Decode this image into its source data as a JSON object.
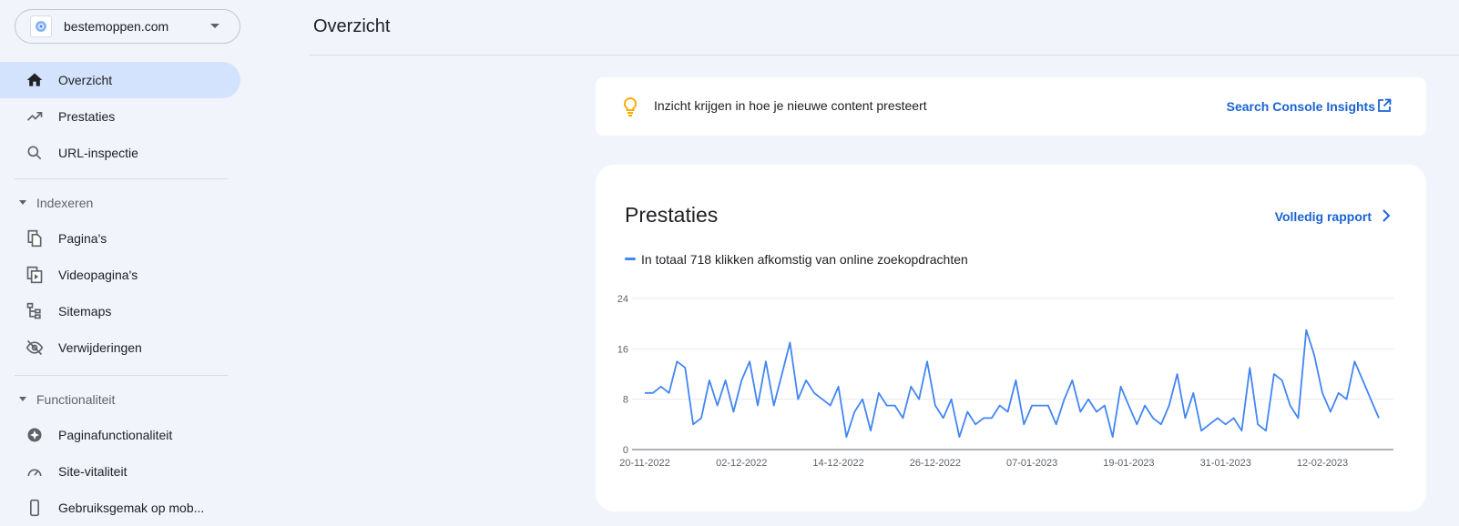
{
  "sidebar": {
    "property": "bestemoppen.com",
    "items_top": [
      {
        "label": "Overzicht",
        "icon": "home-icon",
        "active": true
      },
      {
        "label": "Prestaties",
        "icon": "trending-up-icon"
      },
      {
        "label": "URL-inspectie",
        "icon": "search-icon"
      }
    ],
    "section_index": "Indexeren",
    "items_index": [
      {
        "label": "Pagina's",
        "icon": "pages-icon"
      },
      {
        "label": "Videopagina's",
        "icon": "video-pages-icon"
      },
      {
        "label": "Sitemaps",
        "icon": "sitemap-icon"
      },
      {
        "label": "Verwijderingen",
        "icon": "eye-off-icon"
      }
    ],
    "section_func": "Functionaliteit",
    "items_func": [
      {
        "label": "Paginafunctionaliteit",
        "icon": "page-experience-icon"
      },
      {
        "label": "Site-vitaliteit",
        "icon": "speedometer-icon"
      },
      {
        "label": "Gebruiksgemak op mob...",
        "icon": "mobile-icon"
      }
    ]
  },
  "header": {
    "title": "Overzicht"
  },
  "insights": {
    "text": "Inzicht krijgen in hoe je nieuwe content presteert",
    "link": "Search Console Insights",
    "icon": "lightbulb-icon"
  },
  "performance": {
    "title": "Prestaties",
    "report_link": "Volledig rapport",
    "legend": "In totaal 718 klikken afkomstig van online zoekopdrachten"
  },
  "colors": {
    "accent": "#1a64d3",
    "line": "#4285f4",
    "active_bg": "#d3e3fd",
    "bulb": "#f9ab00"
  },
  "chart_data": {
    "type": "line",
    "y_ticks": [
      "24",
      "16",
      "8",
      "0"
    ],
    "ylim": [
      0,
      24
    ],
    "x_labels": [
      "20-11-2022",
      "02-12-2022",
      "14-12-2022",
      "26-12-2022",
      "07-01-2023",
      "19-01-2023",
      "31-01-2023",
      "12-02-2023"
    ],
    "x_start": "20-11-2022",
    "series": [
      {
        "values": [
          9,
          9,
          10,
          9,
          14,
          13,
          4,
          5,
          11,
          7,
          11,
          6,
          11,
          14,
          7,
          14,
          7,
          12,
          17,
          8,
          11,
          9,
          8,
          7,
          10,
          2,
          6,
          8,
          3,
          9,
          7,
          7,
          5,
          10,
          8,
          14,
          7,
          5,
          8,
          2,
          6,
          4,
          5,
          5,
          7,
          6,
          11,
          4,
          7,
          7,
          7,
          4,
          8,
          11,
          6,
          8,
          6,
          7,
          2,
          10,
          7,
          4,
          7,
          5,
          4,
          7,
          12,
          5,
          9,
          3,
          4,
          5,
          4,
          5,
          3,
          13,
          4,
          3,
          12,
          11,
          7,
          5,
          19,
          15,
          9,
          6,
          9,
          8,
          14,
          11,
          8,
          5
        ]
      }
    ]
  }
}
